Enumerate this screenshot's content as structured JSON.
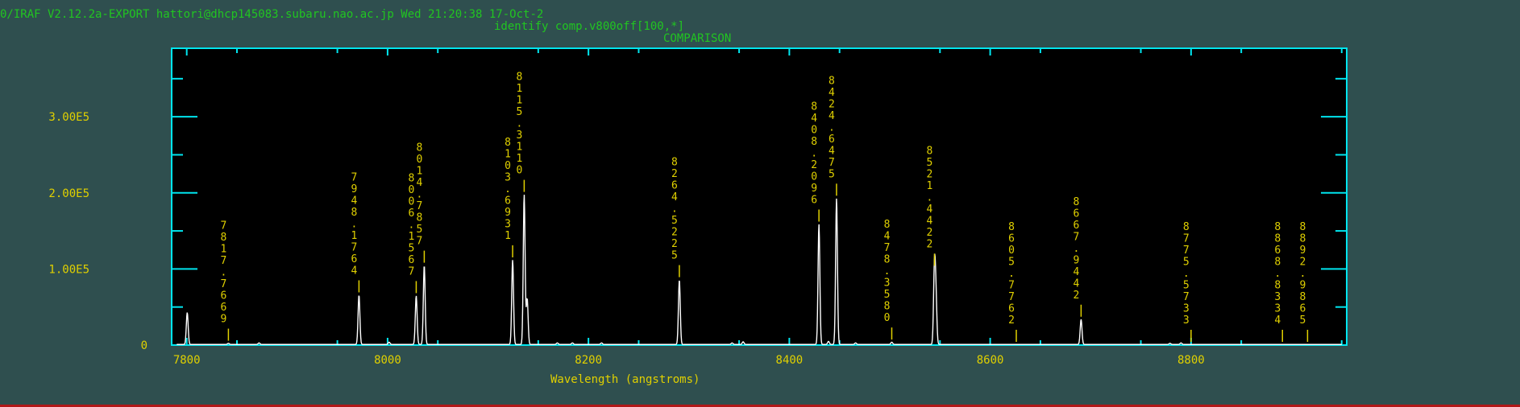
{
  "header": {
    "status_line": "0/IRAF V2.12.2a-EXPORT hattori@dhcp145083.subaru.nao.ac.jp Wed 21:20:38 17-Oct-2",
    "command_line": "identify comp.v800off[100,*]",
    "plot_title": "COMPARISON"
  },
  "colors": {
    "background": "#2f4f4f",
    "frame": "#00e5ee",
    "header_text": "#21c521",
    "labels": "#e0d000",
    "spectrum": "#ffffff",
    "plot_area": "#000000"
  },
  "chart_data": {
    "type": "line",
    "title": "COMPARISON",
    "xlabel": "Wavelength (angstroms)",
    "ylabel": "",
    "xlim": [
      7785,
      8955
    ],
    "ylim": [
      0,
      390000
    ],
    "x_ticks": [
      7800,
      8000,
      8200,
      8400,
      8600,
      8800
    ],
    "y_ticks": [
      0,
      100000,
      200000,
      300000
    ],
    "y_tick_labels": [
      "0",
      "1.00E5",
      "2.00E5",
      "3.00E5"
    ],
    "grid": false,
    "peaks": [
      {
        "x": 7800.5,
        "y": 42000
      },
      {
        "x": 7841.5,
        "y": 1500
      },
      {
        "x": 7872,
        "y": 2000
      },
      {
        "x": 7971.5,
        "y": 65000
      },
      {
        "x": 8001.5,
        "y": 3000
      },
      {
        "x": 8028.5,
        "y": 64000
      },
      {
        "x": 8036.5,
        "y": 104000
      },
      {
        "x": 8124.5,
        "y": 111000
      },
      {
        "x": 8136,
        "y": 197000
      },
      {
        "x": 8139,
        "y": 60000
      },
      {
        "x": 8169,
        "y": 2000
      },
      {
        "x": 8184,
        "y": 2000
      },
      {
        "x": 8213,
        "y": 2000
      },
      {
        "x": 8290.5,
        "y": 85000
      },
      {
        "x": 8343,
        "y": 2000
      },
      {
        "x": 8354,
        "y": 3500
      },
      {
        "x": 8429.5,
        "y": 158000
      },
      {
        "x": 8439,
        "y": 4000
      },
      {
        "x": 8447,
        "y": 192000
      },
      {
        "x": 8466,
        "y": 2000
      },
      {
        "x": 8502,
        "y": 3000
      },
      {
        "x": 8544.5,
        "y": 100000
      },
      {
        "x": 8546,
        "y": 60000
      },
      {
        "x": 8690.5,
        "y": 33000
      },
      {
        "x": 8779,
        "y": 1500
      },
      {
        "x": 8790,
        "y": 2000
      }
    ],
    "line_ids": [
      {
        "label": "7817.7669",
        "x": 7841.5
      },
      {
        "label": "7948.1764",
        "x": 7971.5
      },
      {
        "label": "8006.1567",
        "x": 8028.5
      },
      {
        "label": "8014.7857",
        "x": 8036.5
      },
      {
        "label": "8103.6931",
        "x": 8124.5
      },
      {
        "label": "8115.3110",
        "x": 8136
      },
      {
        "label": "8264.5225",
        "x": 8290.5
      },
      {
        "label": "8408.2096",
        "x": 8429.5
      },
      {
        "label": "8424.6475",
        "x": 8447
      },
      {
        "label": "8478.3580",
        "x": 8502
      },
      {
        "label": "8521.4422",
        "x": 8544.5
      },
      {
        "label": "8605.7762",
        "x": 8626
      },
      {
        "label": "8667.9442",
        "x": 8690.5
      },
      {
        "label": "8775.5733",
        "x": 8800
      },
      {
        "label": "8868.8334",
        "x": 8891
      },
      {
        "label": "8892.9865",
        "x": 8916
      }
    ]
  }
}
